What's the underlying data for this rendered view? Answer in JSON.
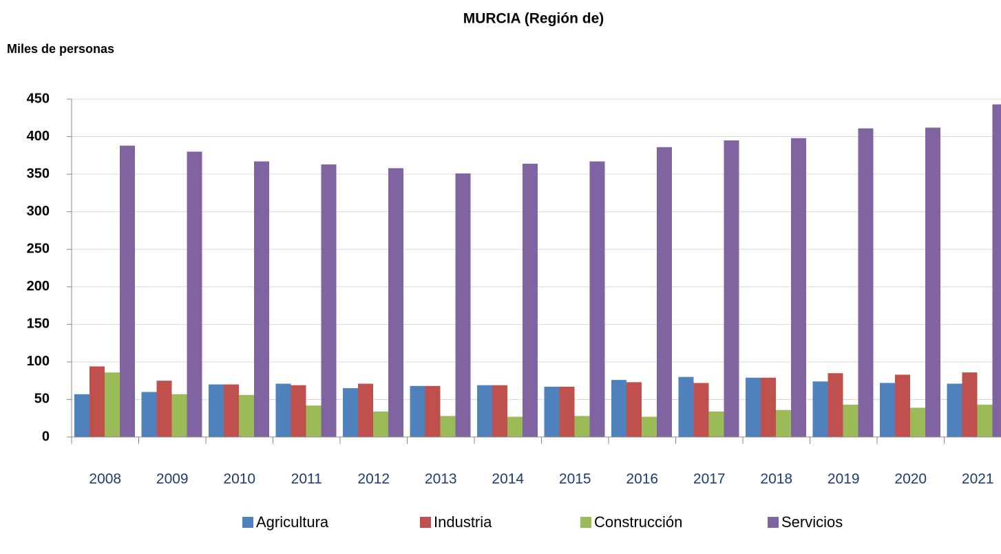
{
  "chart_data": {
    "type": "bar",
    "title": "MURCIA (Región de)",
    "y_label": "Miles de personas",
    "categories": [
      "2008",
      "2009",
      "2010",
      "2011",
      "2012",
      "2013",
      "2014",
      "2015",
      "2016",
      "2017",
      "2018",
      "2019",
      "2020",
      "2021"
    ],
    "series": [
      {
        "name": "Agricultura",
        "color": "#4f81bd",
        "values": [
          57,
          60,
          70,
          71,
          65,
          68,
          69,
          67,
          76,
          80,
          79,
          74,
          72,
          71
        ]
      },
      {
        "name": "Industria",
        "color": "#c0504d",
        "values": [
          94,
          75,
          70,
          69,
          71,
          68,
          69,
          67,
          73,
          72,
          79,
          85,
          83,
          86
        ]
      },
      {
        "name": "Construcción",
        "color": "#9bbb59",
        "values": [
          86,
          57,
          56,
          42,
          34,
          28,
          27,
          28,
          27,
          34,
          36,
          43,
          39,
          43
        ]
      },
      {
        "name": "Servicios",
        "color": "#8064a2",
        "values": [
          388,
          380,
          367,
          363,
          358,
          351,
          364,
          367,
          386,
          395,
          398,
          411,
          412,
          443
        ]
      }
    ],
    "ylim": [
      0,
      450
    ],
    "yticks": [
      0,
      50,
      100,
      150,
      200,
      250,
      300,
      350,
      400,
      450
    ],
    "grid": true,
    "legend": "bottom"
  }
}
